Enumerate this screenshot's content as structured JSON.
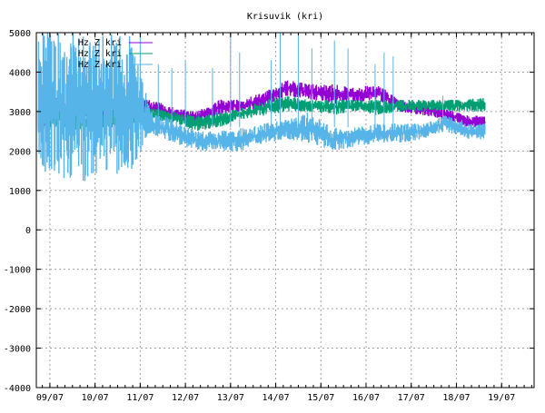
{
  "chart_data": {
    "type": "line",
    "title": "Krisuvik (kri)",
    "xlabel": "",
    "ylabel": "",
    "ylim": [
      -4000,
      5000
    ],
    "xlim_days": [
      8.7,
      19.72
    ],
    "grid": true,
    "legend_placement": "top-left",
    "yticks": [
      5000,
      4000,
      3000,
      2000,
      1000,
      0,
      -1000,
      -2000,
      -3000,
      -4000
    ],
    "xticks": [
      {
        "day": 9,
        "label": "09/07"
      },
      {
        "day": 10,
        "label": "10/07"
      },
      {
        "day": 11,
        "label": "11/07"
      },
      {
        "day": 12,
        "label": "12/07"
      },
      {
        "day": 13,
        "label": "13/07"
      },
      {
        "day": 14,
        "label": "14/07"
      },
      {
        "day": 15,
        "label": "15/07"
      },
      {
        "day": 16,
        "label": "16/07"
      },
      {
        "day": 17,
        "label": "17/07"
      },
      {
        "day": 18,
        "label": "18/07"
      },
      {
        "day": 19,
        "label": "19/07"
      }
    ],
    "series": [
      {
        "name": "Hz Z kri",
        "color": "#9400d3",
        "x": [
          8.75,
          9.25,
          9.75,
          10.25,
          10.75,
          11.25,
          11.75,
          12.25,
          12.75,
          13.25,
          13.75,
          14.25,
          14.75,
          15.25,
          15.75,
          16.25,
          16.75,
          17.25,
          17.75,
          18.25,
          18.64
        ],
        "lo": [
          2500,
          2800,
          2700,
          2700,
          2800,
          2900,
          2800,
          2700,
          2900,
          3000,
          3100,
          3400,
          3300,
          3200,
          3200,
          3300,
          3000,
          2900,
          2800,
          2600,
          2600
        ],
        "hi": [
          3500,
          3400,
          3300,
          3200,
          3300,
          3300,
          3100,
          3000,
          3300,
          3300,
          3500,
          3800,
          3700,
          3700,
          3600,
          3700,
          3300,
          3200,
          3100,
          2900,
          2900
        ],
        "spikes": []
      },
      {
        "name": "Hz Z kri",
        "color": "#009e73",
        "x": [
          8.75,
          9.25,
          9.75,
          10.25,
          10.75,
          11.25,
          11.75,
          12.25,
          12.75,
          13.25,
          13.75,
          14.25,
          14.75,
          15.25,
          15.75,
          16.25,
          16.75,
          17.25,
          17.75,
          18.25,
          18.64
        ],
        "lo": [
          2500,
          2600,
          2500,
          2500,
          2600,
          2800,
          2700,
          2500,
          2600,
          2800,
          2900,
          3000,
          3000,
          2900,
          3000,
          2900,
          3000,
          3000,
          3000,
          3000,
          3000
        ],
        "hi": [
          3200,
          3100,
          3000,
          3000,
          3100,
          3100,
          3000,
          2900,
          3000,
          3100,
          3300,
          3400,
          3300,
          3300,
          3300,
          3300,
          3300,
          3300,
          3300,
          3300,
          3400
        ],
        "spikes": []
      },
      {
        "name": "Hz Z kri",
        "color": "#56b4e9",
        "x": [
          8.75,
          9.25,
          9.75,
          10.25,
          10.75,
          11.25,
          11.75,
          12.25,
          12.75,
          13.25,
          13.75,
          14.25,
          14.75,
          15.25,
          15.75,
          16.25,
          16.75,
          17.25,
          17.75,
          18.25,
          18.64
        ],
        "lo": [
          1400,
          1300,
          1200,
          1500,
          1300,
          2400,
          2200,
          2000,
          2000,
          2000,
          2200,
          2300,
          2200,
          2000,
          2100,
          2200,
          2200,
          2300,
          2500,
          2300,
          2300
        ],
        "hi": [
          5000,
          5000,
          5000,
          5000,
          5000,
          3000,
          2800,
          2500,
          2500,
          2600,
          2700,
          2800,
          3000,
          2600,
          2600,
          2700,
          2700,
          2700,
          2900,
          2700,
          2700
        ],
        "spikes": [
          [
            11.0,
            5000
          ],
          [
            11.4,
            4200
          ],
          [
            11.7,
            4100
          ],
          [
            12.0,
            4300
          ],
          [
            12.6,
            4100
          ],
          [
            13.0,
            5000
          ],
          [
            13.2,
            4500
          ],
          [
            13.9,
            4300
          ],
          [
            14.1,
            5000
          ],
          [
            14.5,
            5000
          ],
          [
            14.8,
            4600
          ],
          [
            15.3,
            4800
          ],
          [
            15.6,
            4600
          ],
          [
            16.2,
            4200
          ],
          [
            16.4,
            4500
          ],
          [
            16.6,
            4400
          ],
          [
            17.7,
            3400
          ]
        ]
      }
    ]
  }
}
